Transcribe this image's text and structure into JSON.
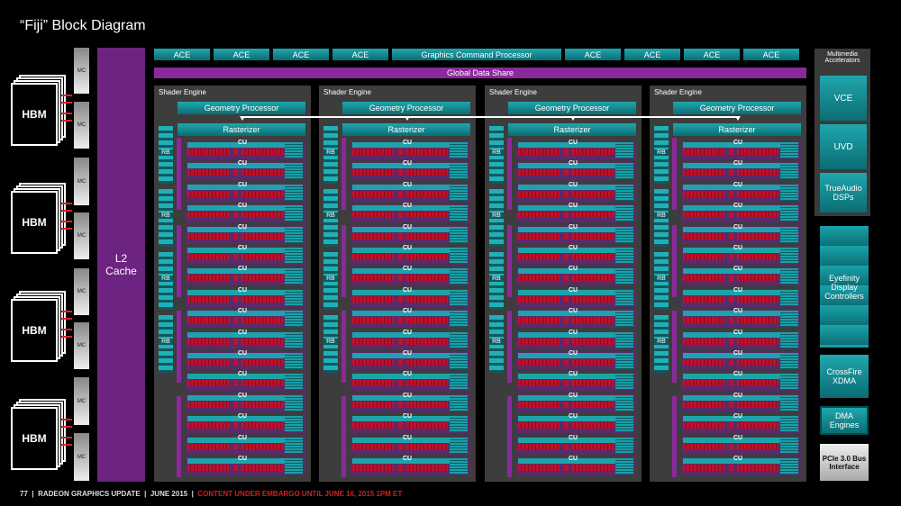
{
  "title": "“Fiji” Block Diagram",
  "memory": {
    "hbm_label": "HBM",
    "mc_label": "MC",
    "l2_label": "L2 Cache"
  },
  "command": {
    "ace_label": "ACE",
    "gcp_label": "Graphics Command Processor",
    "gds_label": "Global Data Share"
  },
  "shader_engine": {
    "title": "Shader Engine",
    "geometry": "Geometry Processor",
    "rasterizer": "Rasterizer",
    "rb": "RB",
    "cu": "CU",
    "count": 4,
    "cus_per_engine": 16,
    "rbs_per_engine": 4
  },
  "right": {
    "multimedia_title": "Multimedia Accelerators",
    "vce": "VCE",
    "uvd": "UVD",
    "trueaudio": "TrueAudio DSPs",
    "eyefinity": "Eyefinity Display Controllers",
    "crossfire": "CrossFire XDMA",
    "dma": "DMA Engines",
    "pcie": "PCIe 3.0 Bus Interface"
  },
  "footer": {
    "page": "77",
    "sep": "|",
    "title": "RADEON GRAPHICS UPDATE",
    "date": "JUNE  2015",
    "embargo": "CONTENT UNDER EMBARGO UNTIL JUNE 16, 2015 1PM ET"
  },
  "colors": {
    "teal": "#1a9aa2",
    "purple": "#6c2480",
    "red": "#c0102a",
    "gray": "#3d3d3d"
  }
}
